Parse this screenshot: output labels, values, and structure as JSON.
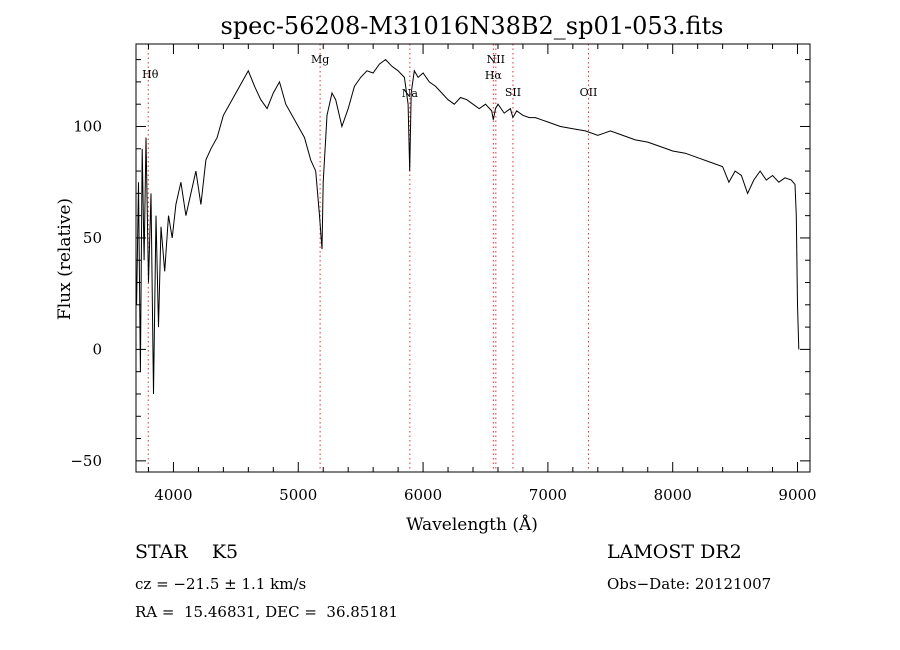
{
  "chart_data": {
    "type": "line",
    "title": "spec-56208-M31016N38B2_sp01-053.fits",
    "xlabel": "Wavelength (Å)",
    "ylabel": "Flux (relative)",
    "xlim": [
      3700,
      9100
    ],
    "ylim": [
      -55,
      137
    ],
    "xticks": [
      4000,
      5000,
      6000,
      7000,
      8000,
      9000
    ],
    "yticks": [
      -50,
      0,
      50,
      100
    ],
    "grid": false,
    "series": [
      {
        "x": [
          3705,
          3720,
          3735,
          3750,
          3765,
          3780,
          3800,
          3820,
          3840,
          3860,
          3880,
          3900,
          3930,
          3960,
          3990,
          4020,
          4060,
          4100,
          4140,
          4180,
          4220,
          4260,
          4300,
          4350,
          4400,
          4450,
          4500,
          4550,
          4600,
          4650,
          4700,
          4750,
          4800,
          4850,
          4900,
          4950,
          5000,
          5050,
          5100,
          5140,
          5170,
          5190,
          5200,
          5230,
          5270,
          5300,
          5350,
          5400,
          5450,
          5500,
          5550,
          5600,
          5650,
          5700,
          5750,
          5800,
          5850,
          5880,
          5893,
          5905,
          5930,
          5960,
          6000,
          6050,
          6100,
          6150,
          6200,
          6250,
          6300,
          6350,
          6400,
          6450,
          6500,
          6550,
          6563,
          6580,
          6600,
          6650,
          6700,
          6720,
          6750,
          6800,
          6850,
          6900,
          6950,
          7000,
          7100,
          7200,
          7300,
          7400,
          7450,
          7500,
          7600,
          7700,
          7800,
          7900,
          8000,
          8100,
          8200,
          8300,
          8400,
          8450,
          8500,
          8550,
          8600,
          8650,
          8700,
          8750,
          8800,
          8850,
          8900,
          8950,
          8980,
          8990,
          9000,
          9010
        ],
        "y": [
          20,
          75,
          -10,
          90,
          40,
          95,
          30,
          70,
          -20,
          60,
          10,
          55,
          35,
          60,
          50,
          65,
          75,
          60,
          70,
          80,
          65,
          85,
          90,
          95,
          105,
          110,
          115,
          120,
          125,
          118,
          112,
          108,
          115,
          120,
          110,
          105,
          100,
          95,
          85,
          80,
          60,
          45,
          75,
          105,
          115,
          112,
          100,
          108,
          118,
          122,
          125,
          124,
          128,
          130,
          127,
          125,
          122,
          110,
          80,
          115,
          125,
          122,
          124,
          120,
          118,
          115,
          112,
          110,
          113,
          112,
          110,
          108,
          110,
          107,
          103,
          108,
          110,
          106,
          108,
          104,
          107,
          105,
          104,
          104,
          103,
          102,
          100,
          99,
          98,
          96,
          97,
          98,
          96,
          94,
          93,
          91,
          89,
          88,
          86,
          84,
          82,
          75,
          80,
          78,
          70,
          76,
          80,
          76,
          78,
          75,
          77,
          76,
          74,
          60,
          20,
          0
        ]
      }
    ],
    "lines": [
      {
        "name": "Hθ",
        "x": 3798
      },
      {
        "name": "Mg",
        "x": 5175
      },
      {
        "name": "Na",
        "x": 5894
      },
      {
        "name": "NII",
        "x": 6583
      },
      {
        "name": "Hα",
        "x": 6563
      },
      {
        "name": "SII",
        "x": 6720
      },
      {
        "name": "OII",
        "x": 7325
      }
    ]
  },
  "info": {
    "object_class": "STAR",
    "subclass": "K5",
    "survey": "LAMOST DR2",
    "cz": "cz = −21.5 ± 1.1 km/s",
    "obs_date": "Obs−Date: 20121007",
    "radec": "RA =  15.46831, DEC =  36.85181"
  }
}
